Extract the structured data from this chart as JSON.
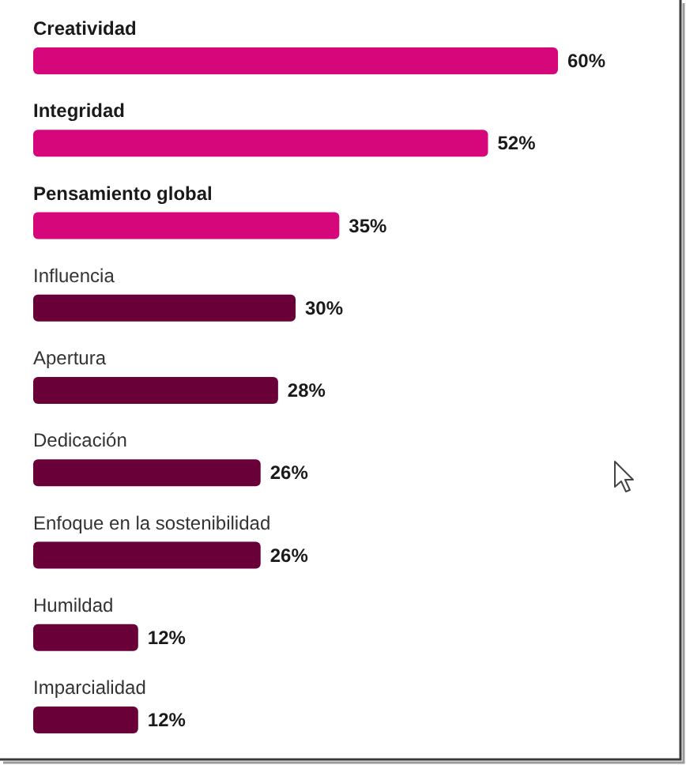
{
  "chart_data": {
    "type": "bar",
    "orientation": "horizontal",
    "categories": [
      "Creatividad",
      "Integridad",
      "Pensamiento global",
      "Influencia",
      "Apertura",
      "Dedicación",
      "Enfoque en la sostenibilidad",
      "Humildad",
      "Imparcialidad"
    ],
    "values": [
      60,
      52,
      35,
      30,
      28,
      26,
      26,
      12,
      12
    ],
    "colors": [
      "#d5077b",
      "#d5077b",
      "#d5077b",
      "#690038",
      "#690038",
      "#690038",
      "#690038",
      "#690038",
      "#690038"
    ],
    "value_labels": [
      "60%",
      "52%",
      "35%",
      "30%",
      "28%",
      "26%",
      "26%",
      "12%",
      "12%"
    ]
  }
}
